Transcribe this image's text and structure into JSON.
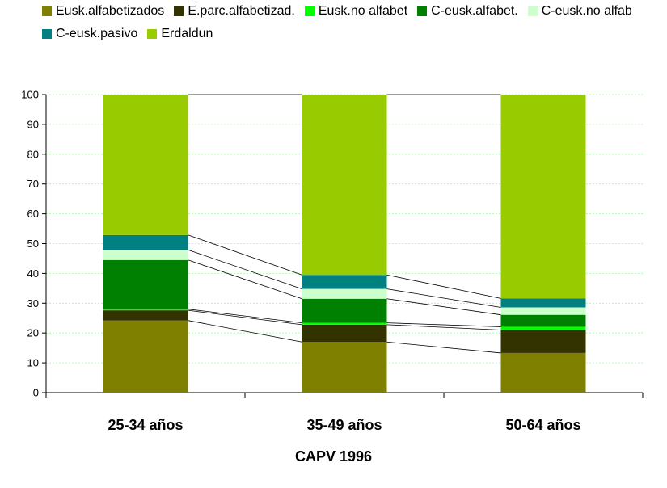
{
  "chart_data": {
    "type": "bar",
    "stacked": true,
    "categories": [
      "25-34 años",
      "35-49 años",
      "50-64 años"
    ],
    "ylim": [
      0,
      100
    ],
    "yticks": [
      0,
      10,
      20,
      30,
      40,
      50,
      60,
      70,
      80,
      90,
      100
    ],
    "grid": true,
    "legend_position": "top",
    "connector_lines": true,
    "caption": "CAPV 1996",
    "series": [
      {
        "name": "Eusk.alfabetizados",
        "color": "#808000",
        "values": [
          24.2,
          17.0,
          13.3
        ]
      },
      {
        "name": "E.parc.alfabetizad.",
        "color": "#333300",
        "values": [
          3.4,
          5.8,
          7.7
        ]
      },
      {
        "name": "Eusk.no alfabet",
        "color": "#00ff00",
        "values": [
          0.4,
          0.6,
          1.1
        ]
      },
      {
        "name": "C-eusk.alfabet.",
        "color": "#008000",
        "values": [
          16.5,
          8.1,
          4.0
        ]
      },
      {
        "name": "C-eusk.no alfab",
        "color": "#ccffcc",
        "values": [
          3.4,
          3.3,
          2.5
        ]
      },
      {
        "name": "C-eusk.pasivo",
        "color": "#008080",
        "values": [
          5.0,
          4.7,
          3.0
        ]
      },
      {
        "name": "Erdaldun",
        "color": "#99cc00",
        "values": [
          47.1,
          60.5,
          68.4
        ]
      }
    ]
  }
}
